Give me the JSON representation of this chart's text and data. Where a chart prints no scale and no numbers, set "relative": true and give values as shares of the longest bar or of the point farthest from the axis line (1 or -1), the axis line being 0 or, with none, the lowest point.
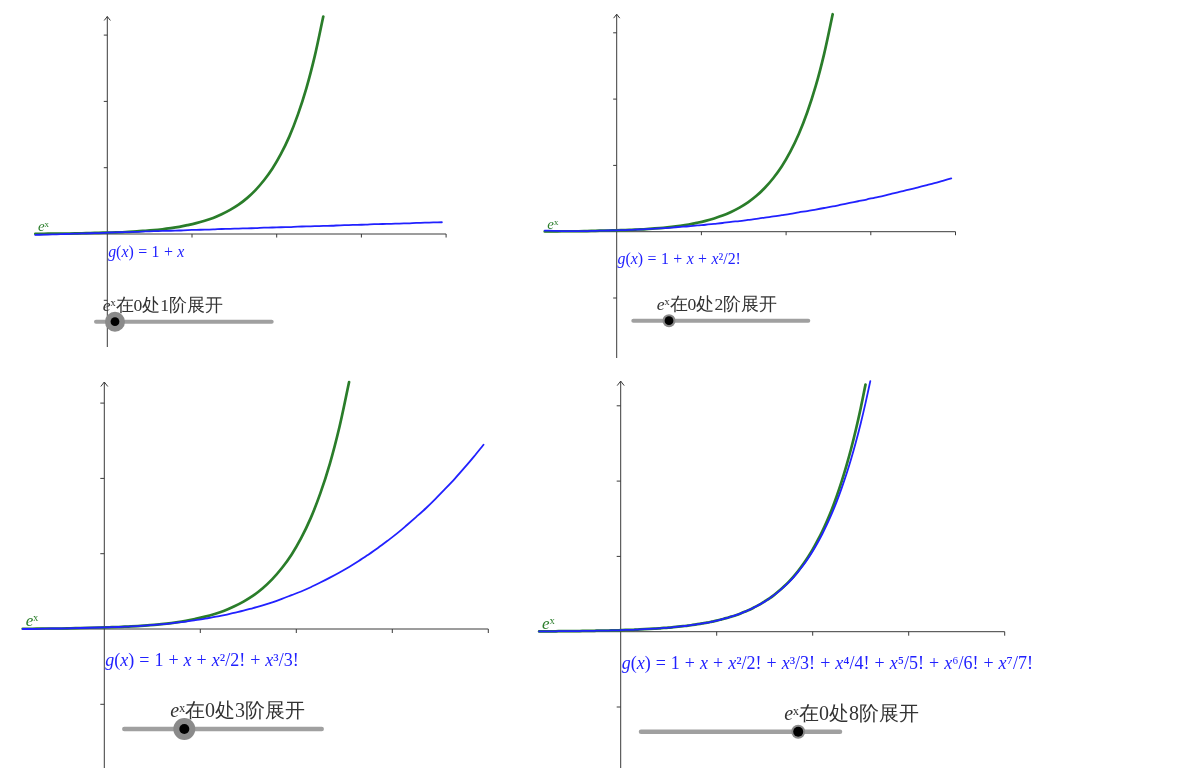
{
  "chart_data": [
    {
      "type": "line",
      "relative": true,
      "categories": [
        null,
        null,
        null,
        null,
        null,
        null,
        null,
        null,
        null,
        null,
        null,
        null,
        null,
        null,
        null,
        null,
        null,
        null,
        null,
        null,
        null,
        null,
        null,
        null,
        null,
        null,
        null,
        null,
        null,
        null,
        null,
        null,
        null,
        null,
        null,
        null,
        null,
        null,
        null,
        null,
        null,
        null,
        null,
        null,
        null,
        null,
        null,
        null,
        null
      ],
      "series": [
        {
          "name": "eˣ",
          "color": "#2a7d2a",
          "values": [
            0.001,
            0.001,
            0.002,
            0.002,
            0.002,
            0.003,
            0.004,
            0.005,
            0.006,
            0.007,
            0.008,
            0.01,
            0.012,
            0.015,
            0.018,
            0.022,
            0.027,
            0.033,
            0.041,
            0.05,
            0.061,
            0.074,
            0.091,
            0.111,
            0.135,
            0.165,
            0.202,
            0.247,
            0.301,
            0.368,
            0.449,
            0.549,
            0.67,
            0.819,
            1,
            null,
            null,
            null,
            null,
            null,
            null,
            null,
            null,
            null,
            null,
            null,
            null,
            null,
            null
          ]
        },
        {
          "name": "g(x) = 1 + x",
          "color": "#2121ff",
          "values": [
            -0.004,
            -0.003,
            -0.002,
            -0.001,
            0.001,
            0.002,
            0.003,
            0.004,
            0.005,
            0.007,
            0.008,
            0.009,
            0.01,
            0.012,
            0.013,
            0.014,
            0.015,
            0.016,
            0.018,
            0.019,
            0.02,
            0.021,
            0.023,
            0.024,
            0.025,
            0.026,
            0.027,
            0.029,
            0.03,
            0.031,
            0.032,
            0.034,
            0.035,
            0.036,
            0.037,
            0.038,
            0.04,
            0.041,
            0.042,
            0.043,
            0.045,
            0.046,
            0.047,
            0.048,
            0.049,
            0.051,
            0.052,
            0.053,
            0.054
          ]
        }
      ],
      "annotations": [
        "eˣ在0处1阶展开"
      ]
    },
    {
      "type": "line",
      "relative": true,
      "categories": [
        null,
        null,
        null,
        null,
        null,
        null,
        null,
        null,
        null,
        null,
        null,
        null,
        null,
        null,
        null,
        null,
        null,
        null,
        null,
        null,
        null,
        null,
        null,
        null,
        null,
        null,
        null,
        null,
        null,
        null,
        null,
        null,
        null,
        null,
        null,
        null,
        null,
        null,
        null,
        null,
        null,
        null,
        null,
        null,
        null,
        null,
        null,
        null,
        null
      ],
      "series": [
        {
          "name": "eˣ",
          "color": "#2a7d2a",
          "values": [
            0.001,
            0.001,
            0.002,
            0.002,
            0.002,
            0.003,
            0.004,
            0.005,
            0.006,
            0.007,
            0.008,
            0.01,
            0.012,
            0.015,
            0.018,
            0.022,
            0.027,
            0.033,
            0.041,
            0.05,
            0.061,
            0.074,
            0.091,
            0.111,
            0.135,
            0.165,
            0.202,
            0.247,
            0.301,
            0.368,
            0.449,
            0.549,
            0.67,
            0.819,
            1,
            null,
            null,
            null,
            null,
            null,
            null,
            null,
            null,
            null,
            null,
            null,
            null,
            null,
            null
          ]
        },
        {
          "name": "g(x) = 1 + x + x²/2!",
          "color": "#2121ff",
          "values": [
            0.005,
            0.004,
            0.003,
            0.003,
            0.003,
            0.003,
            0.004,
            0.005,
            0.006,
            0.007,
            0.008,
            0.01,
            0.012,
            0.014,
            0.016,
            0.019,
            0.022,
            0.025,
            0.029,
            0.032,
            0.036,
            0.04,
            0.045,
            0.049,
            0.054,
            0.059,
            0.065,
            0.07,
            0.076,
            0.082,
            0.089,
            0.095,
            0.102,
            0.109,
            0.116,
            0.124,
            0.132,
            0.14,
            0.148,
            0.157,
            0.165,
            0.175,
            0.184,
            0.193,
            0.203,
            0.213,
            0.223,
            0.234,
            0.245
          ]
        }
      ],
      "annotations": [
        "eˣ在0处2阶展开"
      ]
    },
    {
      "type": "line",
      "relative": true,
      "categories": [
        null,
        null,
        null,
        null,
        null,
        null,
        null,
        null,
        null,
        null,
        null,
        null,
        null,
        null,
        null,
        null,
        null,
        null,
        null,
        null,
        null,
        null,
        null,
        null,
        null,
        null,
        null,
        null,
        null,
        null,
        null,
        null,
        null,
        null,
        null,
        null,
        null,
        null,
        null,
        null,
        null,
        null,
        null,
        null,
        null,
        null,
        null,
        null,
        null
      ],
      "series": [
        {
          "name": "eˣ",
          "color": "#2a7d2a",
          "values": [
            0.001,
            0.001,
            0.002,
            0.002,
            0.002,
            0.003,
            0.004,
            0.005,
            0.006,
            0.007,
            0.008,
            0.01,
            0.012,
            0.015,
            0.018,
            0.022,
            0.027,
            0.033,
            0.041,
            0.05,
            0.061,
            0.074,
            0.091,
            0.111,
            0.135,
            0.165,
            0.202,
            0.247,
            0.301,
            0.368,
            0.449,
            0.549,
            0.67,
            0.819,
            1,
            null,
            null,
            null,
            null,
            null,
            null,
            null,
            null,
            null,
            null,
            null,
            null,
            null,
            null
          ]
        },
        {
          "name": "g(x) = 1 + x + x²/2! + x³/3!",
          "color": "#2121ff",
          "values": [
            0,
            0,
            0.001,
            0.002,
            0.002,
            0.003,
            0.004,
            0.005,
            0.006,
            0.007,
            0.008,
            0.01,
            0.012,
            0.015,
            0.018,
            0.021,
            0.026,
            0.03,
            0.036,
            0.042,
            0.049,
            0.056,
            0.065,
            0.074,
            0.085,
            0.096,
            0.108,
            0.122,
            0.137,
            0.152,
            0.169,
            0.188,
            0.208,
            0.229,
            0.251,
            0.275,
            0.301,
            0.328,
            0.357,
            0.387,
            0.42,
            0.454,
            0.489,
            0.527,
            0.567,
            0.608,
            0.652,
            0.698,
            0.746
          ]
        }
      ],
      "annotations": [
        "eˣ在0处3阶展开"
      ]
    },
    {
      "type": "line",
      "relative": true,
      "categories": [
        null,
        null,
        null,
        null,
        null,
        null,
        null,
        null,
        null,
        null,
        null,
        null,
        null,
        null,
        null,
        null,
        null,
        null,
        null,
        null,
        null,
        null,
        null,
        null,
        null,
        null,
        null,
        null,
        null,
        null,
        null,
        null,
        null,
        null,
        null,
        null,
        null,
        null,
        null,
        null,
        null,
        null,
        null,
        null,
        null,
        null,
        null,
        null,
        null,
        null,
        null,
        null,
        null,
        null,
        null,
        null,
        null,
        null,
        null,
        null,
        null,
        null,
        null,
        null,
        null,
        null,
        null,
        null,
        null,
        null,
        null,
        null,
        null,
        null,
        null,
        null,
        null,
        null,
        null,
        null,
        null,
        null,
        null,
        null,
        null,
        null,
        null,
        null,
        null,
        null,
        null,
        null,
        null,
        null,
        null,
        null,
        null,
        null
      ],
      "series": [
        {
          "name": "eˣ",
          "color": "#2a7d2a",
          "values": [
            0.001,
            0.001,
            0.001,
            0.001,
            0.002,
            0.002,
            0.002,
            0.002,
            0.002,
            0.003,
            0.003,
            0.003,
            0.004,
            0.004,
            0.004,
            0.005,
            0.005,
            0.006,
            0.007,
            0.007,
            0.008,
            0.009,
            0.01,
            0.011,
            0.012,
            0.013,
            0.015,
            0.016,
            0.018,
            0.02,
            0.022,
            0.024,
            0.027,
            0.03,
            0.033,
            0.036,
            0.04,
            0.044,
            0.049,
            0.054,
            0.06,
            0.066,
            0.073,
            0.081,
            0.089,
            0.099,
            0.109,
            0.121,
            0.133,
            0.147,
            0.163,
            0.18,
            0.199,
            0.22,
            0.243,
            0.269,
            0.297,
            0.328,
            0.363,
            0.401,
            0.443,
            0.489,
            0.541,
            0.598,
            0.661,
            0.73,
            0.807,
            0.892,
            0.986,
            null,
            null,
            null,
            null,
            null,
            null,
            null,
            null,
            null,
            null,
            null,
            null,
            null,
            null,
            null,
            null,
            null,
            null,
            null,
            null,
            null,
            null,
            null,
            null,
            null,
            null,
            null,
            null,
            null
          ]
        },
        {
          "name": "g(x) = 1 + x + x²/2! + x³/3! + x⁴/4! + x⁵/5! + x⁶/6! + x⁷/7!",
          "color": "#2121ff",
          "values": [
            0.001,
            0.001,
            0.001,
            0.001,
            0.002,
            0.002,
            0.002,
            0.002,
            0.002,
            0.003,
            0.003,
            0.003,
            0.004,
            0.004,
            0.004,
            0.005,
            0.005,
            0.006,
            0.007,
            0.007,
            0.008,
            0.009,
            0.01,
            0.011,
            0.012,
            0.013,
            0.015,
            0.016,
            0.018,
            0.02,
            0.022,
            0.024,
            0.027,
            0.03,
            0.033,
            0.036,
            0.04,
            0.044,
            0.049,
            0.054,
            0.06,
            0.066,
            0.073,
            0.081,
            0.089,
            0.099,
            0.109,
            0.12,
            0.133,
            0.147,
            0.162,
            0.179,
            0.197,
            0.217,
            0.24,
            0.264,
            0.291,
            0.321,
            0.354,
            0.39,
            0.429,
            0.472,
            0.519,
            0.571,
            0.627,
            0.689,
            0.757,
            0.831,
            0.912,
            1,
            null,
            null,
            null,
            null,
            null,
            null,
            null,
            null,
            null,
            null,
            null,
            null,
            null,
            null,
            null,
            null,
            null,
            null,
            null,
            null,
            null,
            null,
            null,
            null,
            null,
            null,
            null,
            null
          ]
        }
      ],
      "annotations": [
        "eˣ在0处8阶展开"
      ]
    }
  ]
}
